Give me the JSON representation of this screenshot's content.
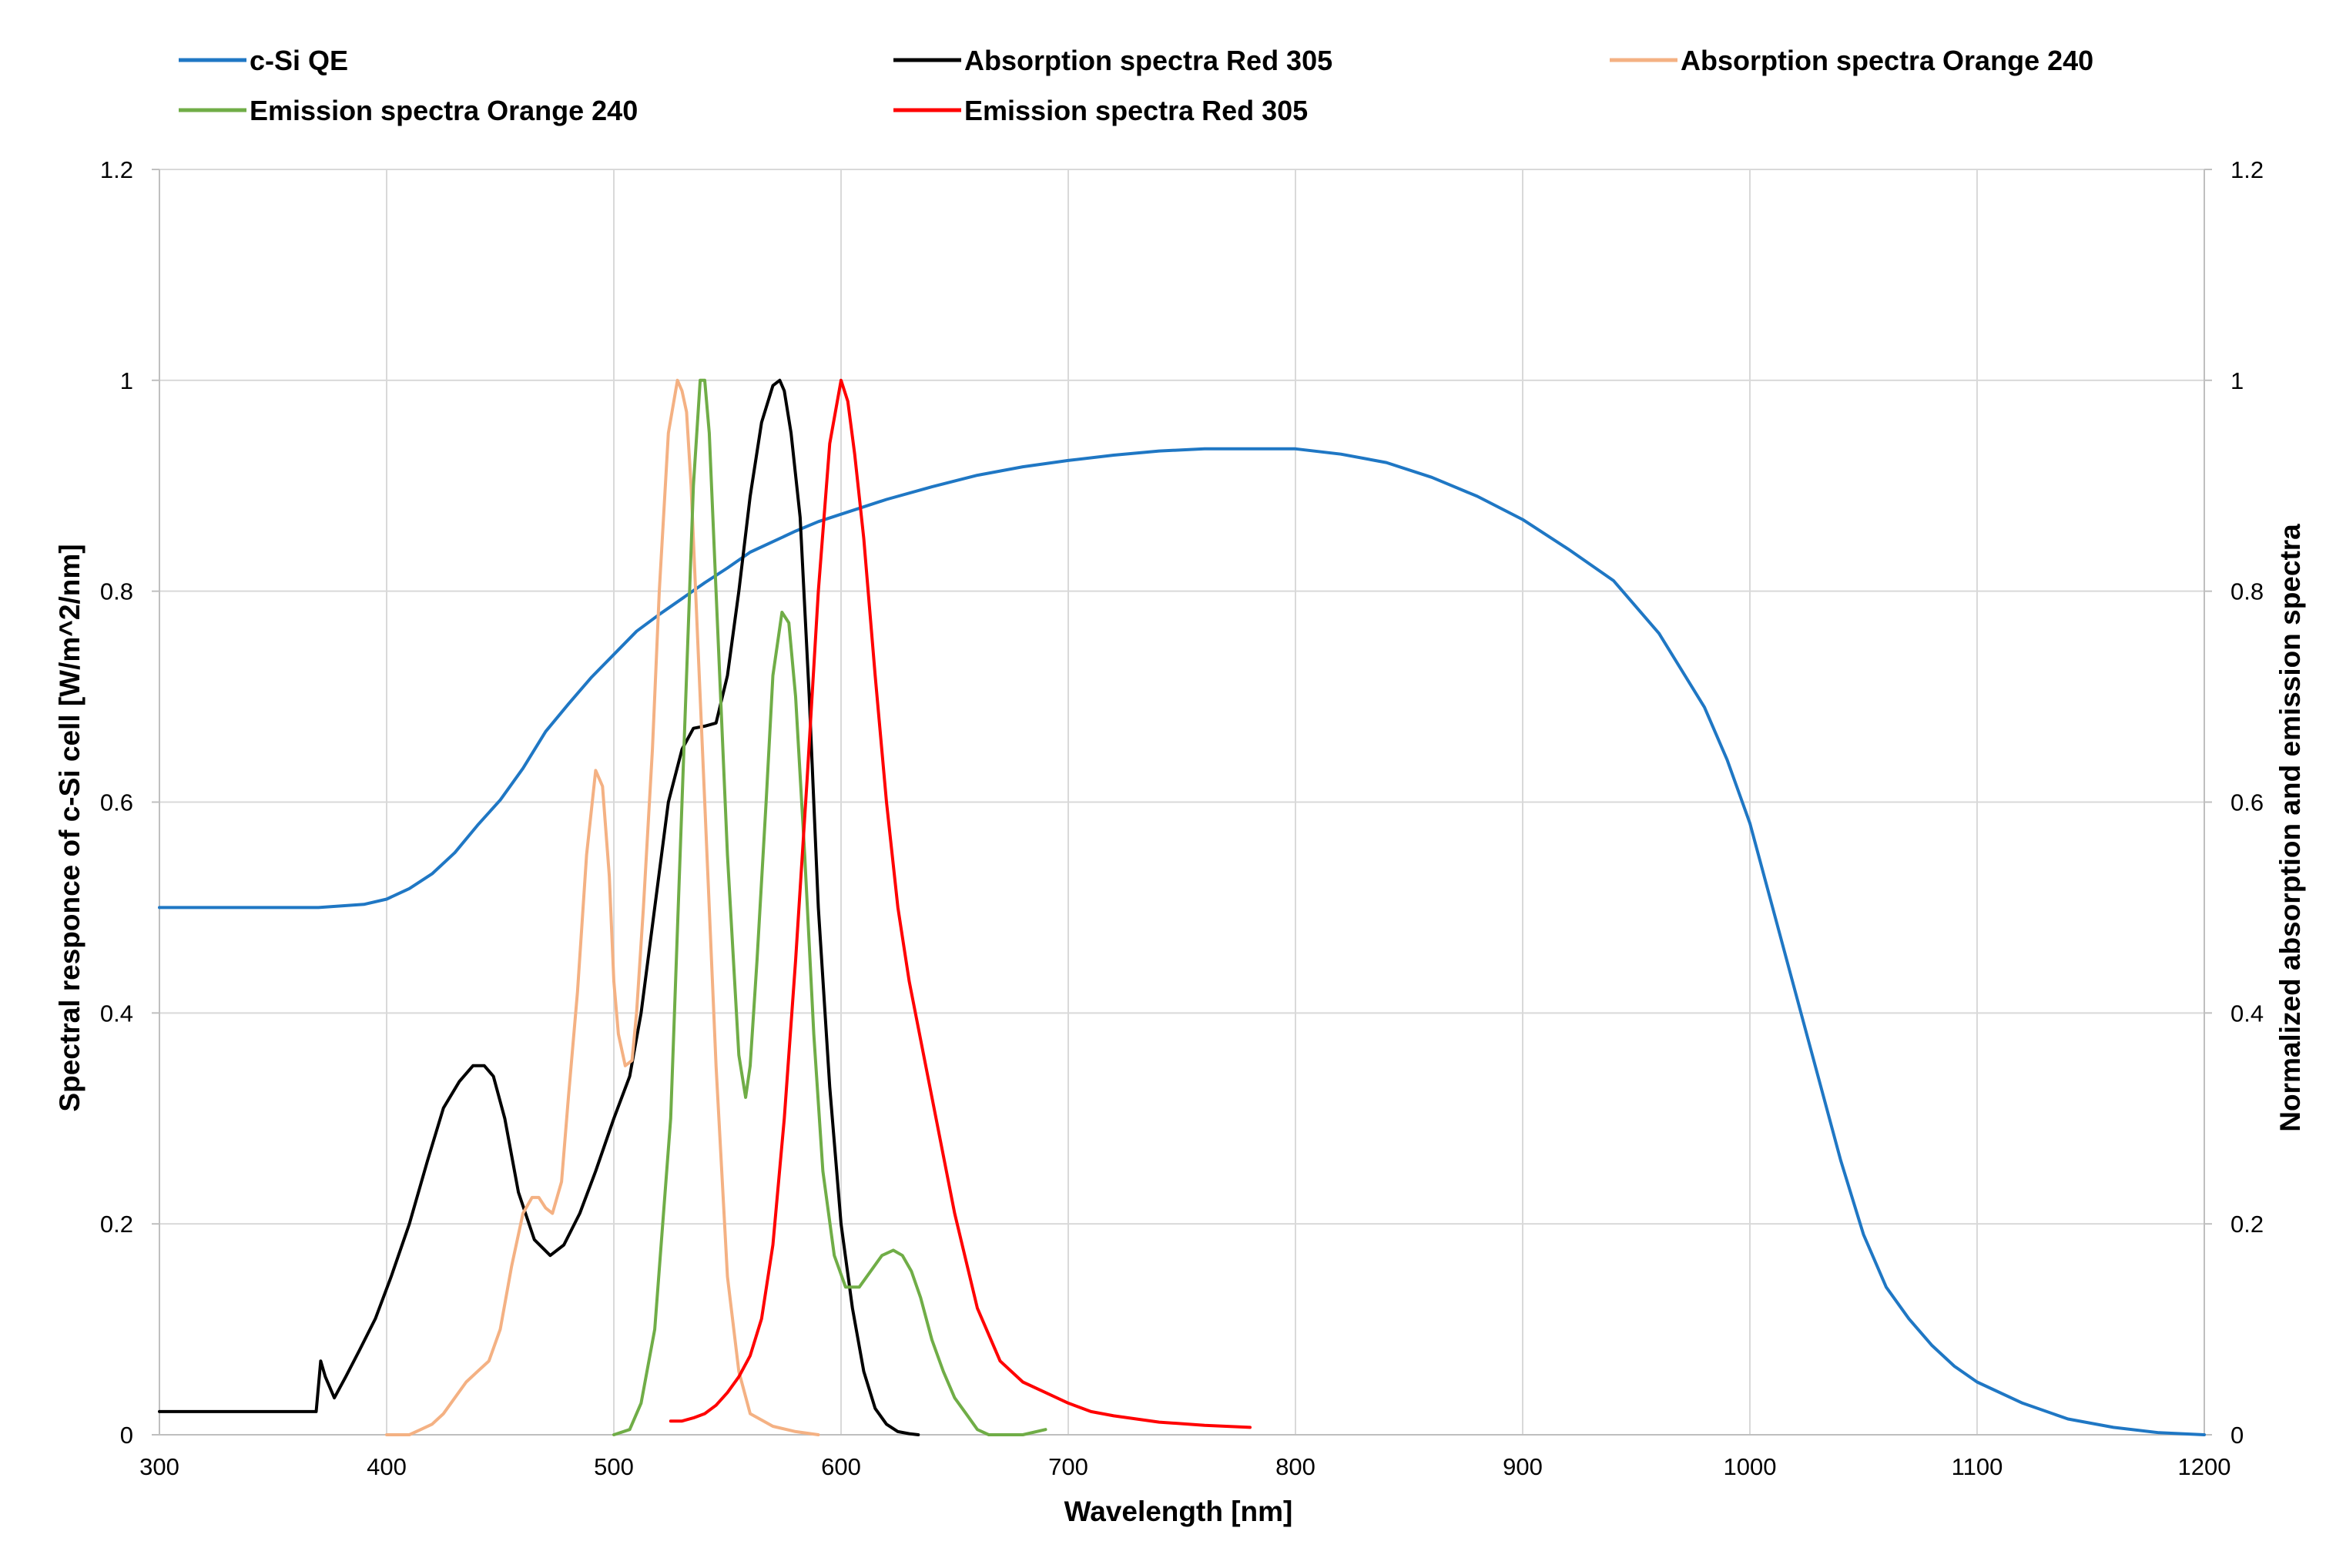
{
  "chart_data": {
    "type": "line",
    "title": "",
    "xlabel": "Wavelength [nm]",
    "ylabel": "Spectral responce of c-Si cell [W/m^2/nm]",
    "y2label": "Normalized absorption and emission spectra",
    "xlim": [
      300,
      1200
    ],
    "ylim": [
      0,
      1.2
    ],
    "y2lim": [
      0,
      1.2
    ],
    "x_ticks": [
      "300",
      "400",
      "500",
      "600",
      "700",
      "800",
      "900",
      "1000",
      "1100",
      "1200"
    ],
    "y_ticks": [
      "0",
      "0.2",
      "0.4",
      "0.6",
      "0.8",
      "1",
      "1.2"
    ],
    "y2_ticks": [
      "0",
      "0.2",
      "0.4",
      "0.6",
      "0.8",
      "1",
      "1.2"
    ],
    "grid": true,
    "legend_position": "top",
    "series": [
      {
        "name": "c-Si QE",
        "color": "#1f77c4",
        "axis": "left",
        "x": [
          300,
          340,
          370,
          390,
          400,
          410,
          420,
          430,
          440,
          450,
          460,
          470,
          480,
          490,
          500,
          510,
          520,
          530,
          540,
          550,
          560,
          570,
          580,
          590,
          600,
          620,
          640,
          660,
          680,
          700,
          720,
          740,
          760,
          780,
          800,
          820,
          840,
          860,
          880,
          900,
          920,
          940,
          960,
          980,
          990,
          1000,
          1010,
          1020,
          1030,
          1040,
          1050,
          1060,
          1070,
          1080,
          1090,
          1100,
          1120,
          1140,
          1160,
          1180,
          1200
        ],
        "y": [
          0.5,
          0.5,
          0.5,
          0.503,
          0.508,
          0.518,
          0.532,
          0.552,
          0.578,
          0.602,
          0.632,
          0.667,
          0.693,
          0.718,
          0.74,
          0.762,
          0.778,
          0.793,
          0.808,
          0.822,
          0.837,
          0.847,
          0.857,
          0.866,
          0.873,
          0.887,
          0.899,
          0.91,
          0.918,
          0.924,
          0.929,
          0.933,
          0.935,
          0.935,
          0.935,
          0.93,
          0.922,
          0.908,
          0.89,
          0.868,
          0.84,
          0.81,
          0.76,
          0.69,
          0.64,
          0.58,
          0.5,
          0.42,
          0.34,
          0.26,
          0.19,
          0.14,
          0.11,
          0.085,
          0.065,
          0.05,
          0.03,
          0.015,
          0.007,
          0.002,
          0.0
        ]
      },
      {
        "name": "Absorption spectra Red 305",
        "color": "#000000",
        "axis": "right",
        "x": [
          300,
          340,
          369,
          371,
          373,
          377,
          382,
          388,
          395,
          402,
          410,
          418,
          425,
          432,
          438,
          443,
          447,
          452,
          458,
          465,
          472,
          478,
          485,
          492,
          500,
          507,
          512,
          518,
          524,
          530,
          535,
          540,
          545,
          550,
          555,
          560,
          565,
          570,
          573,
          575,
          578,
          582,
          586,
          590,
          595,
          600,
          605,
          610,
          615,
          620,
          625,
          630,
          634
        ],
        "y": [
          0.022,
          0.022,
          0.022,
          0.07,
          0.055,
          0.035,
          0.055,
          0.08,
          0.11,
          0.15,
          0.2,
          0.26,
          0.31,
          0.335,
          0.35,
          0.35,
          0.34,
          0.3,
          0.23,
          0.185,
          0.17,
          0.18,
          0.21,
          0.25,
          0.3,
          0.34,
          0.4,
          0.5,
          0.6,
          0.65,
          0.67,
          0.672,
          0.675,
          0.72,
          0.8,
          0.89,
          0.96,
          0.995,
          1.0,
          0.99,
          0.95,
          0.87,
          0.7,
          0.5,
          0.33,
          0.2,
          0.12,
          0.06,
          0.025,
          0.01,
          0.003,
          0.001,
          0.0
        ]
      },
      {
        "name": "Absorption spectra Orange 240",
        "color": "#f4b183",
        "axis": "right",
        "x": [
          400,
          410,
          415,
          420,
          425,
          430,
          435,
          440,
          445,
          450,
          455,
          460,
          464,
          467,
          470,
          473,
          477,
          480,
          484,
          488,
          492,
          495,
          498,
          500,
          502,
          505,
          508,
          510,
          513,
          517,
          520,
          524,
          528,
          530,
          532,
          534,
          537,
          540,
          545,
          550,
          555,
          560,
          570,
          580,
          590
        ],
        "y": [
          0.0,
          0.0,
          0.005,
          0.01,
          0.02,
          0.035,
          0.05,
          0.06,
          0.07,
          0.1,
          0.16,
          0.21,
          0.225,
          0.225,
          0.215,
          0.21,
          0.24,
          0.32,
          0.42,
          0.55,
          0.63,
          0.615,
          0.53,
          0.43,
          0.38,
          0.35,
          0.355,
          0.4,
          0.5,
          0.65,
          0.8,
          0.95,
          1.0,
          0.99,
          0.97,
          0.9,
          0.75,
          0.6,
          0.35,
          0.15,
          0.06,
          0.02,
          0.008,
          0.003,
          0.0
        ]
      },
      {
        "name": "Emission spectra Orange 240",
        "color": "#70ad47",
        "axis": "right",
        "x": [
          500,
          507,
          512,
          518,
          525,
          530,
          535,
          538,
          540,
          542,
          545,
          550,
          555,
          558,
          560,
          563,
          567,
          570,
          574,
          577,
          580,
          584,
          588,
          592,
          597,
          602,
          608,
          613,
          618,
          623,
          627,
          631,
          635,
          640,
          645,
          650,
          655,
          660,
          665,
          670,
          680,
          690
        ],
        "y": [
          0.0,
          0.005,
          0.03,
          0.1,
          0.3,
          0.6,
          0.9,
          1.0,
          1.0,
          0.95,
          0.8,
          0.55,
          0.36,
          0.32,
          0.35,
          0.45,
          0.6,
          0.72,
          0.78,
          0.77,
          0.7,
          0.55,
          0.38,
          0.25,
          0.17,
          0.14,
          0.14,
          0.155,
          0.17,
          0.175,
          0.17,
          0.155,
          0.13,
          0.09,
          0.06,
          0.035,
          0.02,
          0.005,
          0.0,
          0.0,
          0.0,
          0.005
        ]
      },
      {
        "name": "Emission spectra Red 305",
        "color": "#ff0000",
        "axis": "right",
        "x": [
          525,
          530,
          535,
          540,
          545,
          550,
          555,
          560,
          565,
          570,
          575,
          580,
          585,
          590,
          595,
          600,
          603,
          606,
          610,
          615,
          620,
          625,
          630,
          640,
          650,
          660,
          670,
          680,
          690,
          700,
          710,
          720,
          740,
          760,
          780
        ],
        "y": [
          0.013,
          0.013,
          0.016,
          0.02,
          0.028,
          0.04,
          0.055,
          0.075,
          0.11,
          0.18,
          0.3,
          0.45,
          0.62,
          0.8,
          0.94,
          1.0,
          0.98,
          0.93,
          0.85,
          0.72,
          0.6,
          0.5,
          0.43,
          0.32,
          0.21,
          0.12,
          0.07,
          0.05,
          0.04,
          0.03,
          0.022,
          0.018,
          0.012,
          0.009,
          0.007
        ]
      }
    ]
  }
}
